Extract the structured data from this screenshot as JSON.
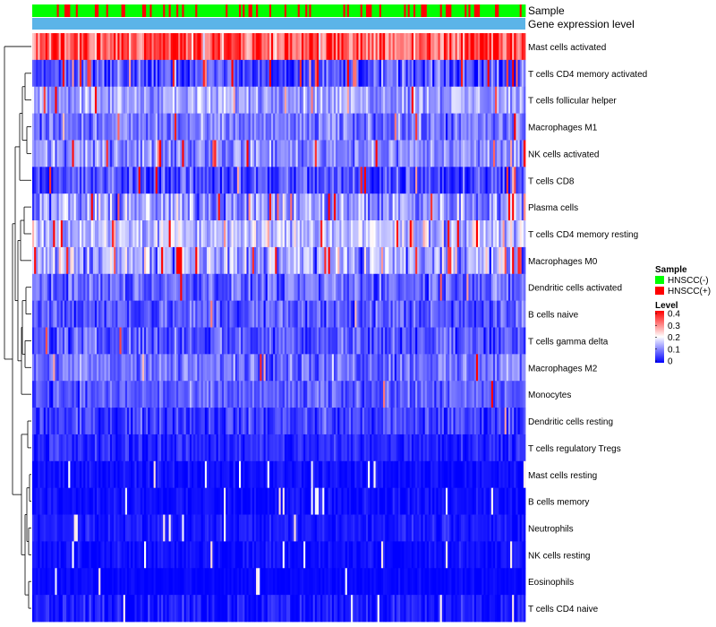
{
  "chart_data": {
    "type": "heatmap",
    "title": "",
    "annotation_tracks": [
      "Sample",
      "Gene expression level"
    ],
    "rows": [
      {
        "name": "Mast cells activated",
        "level": 0.3,
        "spread": 0.08,
        "hot": 0.55
      },
      {
        "name": "T cells CD4 memory activated",
        "level": 0.06,
        "spread": 0.06,
        "hot": 0.08
      },
      {
        "name": "T cells follicular helper",
        "level": 0.13,
        "spread": 0.05,
        "hot": 0.04
      },
      {
        "name": "Macrophages M1",
        "level": 0.09,
        "spread": 0.05,
        "hot": 0.02
      },
      {
        "name": "NK cells activated",
        "level": 0.11,
        "spread": 0.05,
        "hot": 0.03
      },
      {
        "name": "T cells CD8",
        "level": 0.06,
        "spread": 0.06,
        "hot": 0.05
      },
      {
        "name": "Plasma cells",
        "level": 0.12,
        "spread": 0.07,
        "hot": 0.06
      },
      {
        "name": "T cells CD4 memory resting",
        "level": 0.15,
        "spread": 0.06,
        "hot": 0.04
      },
      {
        "name": "Macrophages M0",
        "level": 0.13,
        "spread": 0.08,
        "hot": 0.08
      },
      {
        "name": "Dendritic cells activated",
        "level": 0.08,
        "spread": 0.05,
        "hot": 0.02
      },
      {
        "name": "B cells naive",
        "level": 0.07,
        "spread": 0.05,
        "hot": 0.02
      },
      {
        "name": "T cells gamma delta",
        "level": 0.07,
        "spread": 0.05,
        "hot": 0.01
      },
      {
        "name": "Macrophages M2",
        "level": 0.09,
        "spread": 0.05,
        "hot": 0.02
      },
      {
        "name": "Monocytes",
        "level": 0.07,
        "spread": 0.04,
        "hot": 0.01
      },
      {
        "name": "Dendritic cells resting",
        "level": 0.05,
        "spread": 0.04,
        "hot": 0.01
      },
      {
        "name": "T cells regulatory  Tregs",
        "level": 0.03,
        "spread": 0.03,
        "hot": 0.0
      },
      {
        "name": "Mast cells resting",
        "level": 0.01,
        "spread": 0.02,
        "hot": 0.0
      },
      {
        "name": "B cells memory",
        "level": 0.01,
        "spread": 0.02,
        "hot": 0.0
      },
      {
        "name": "Neutrophils",
        "level": 0.02,
        "spread": 0.02,
        "hot": 0.0
      },
      {
        "name": "NK cells resting",
        "level": 0.01,
        "spread": 0.02,
        "hot": 0.0
      },
      {
        "name": "Eosinophils",
        "level": 0.005,
        "spread": 0.01,
        "hot": 0.0
      },
      {
        "name": "T cells CD4 naive",
        "level": 0.02,
        "spread": 0.03,
        "hot": 0.0
      }
    ],
    "n_columns": 260,
    "sample_groups": [
      "HNSCC(-)",
      "HNSCC(+)"
    ],
    "sample_group_proportion": {
      "HNSCC(-)": 0.78,
      "HNSCC(+)": 0.22
    },
    "legend_sample_title": "Sample",
    "legend_level_title": "Level",
    "level_ticks": [
      "0.4",
      "0.3",
      "0.2",
      "0.1",
      "0"
    ],
    "color_range": [
      0,
      0.4
    ],
    "colors": {
      "low": "#0000ff",
      "mid": "#ffffff",
      "high": "#ff0000",
      "hnscc_neg": "#00ff00",
      "hnscc_pos": "#ff0000",
      "expression_track": "#5bb4e8",
      "dendrogram": "#000000"
    }
  }
}
